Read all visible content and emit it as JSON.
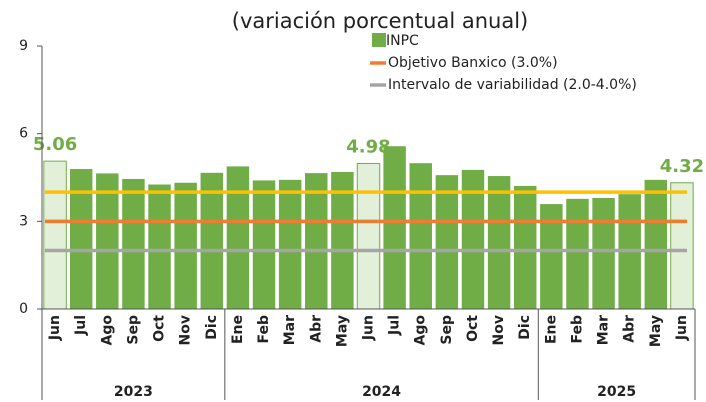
{
  "chart_data": {
    "type": "bar",
    "title": "(variación porcentual anual)",
    "categories": [
      "Jun",
      "Jul",
      "Ago",
      "Sep",
      "Oct",
      "Nov",
      "Dic",
      "Ene",
      "Feb",
      "Mar",
      "Abr",
      "May",
      "Jun",
      "Jul",
      "Ago",
      "Sep",
      "Oct",
      "Nov",
      "Dic",
      "Ene",
      "Feb",
      "Mar",
      "Abr",
      "May",
      "Jun"
    ],
    "year_groups": [
      {
        "label": "2023",
        "start": 0,
        "end": 6
      },
      {
        "label": "2024",
        "start": 7,
        "end": 18
      },
      {
        "label": "2025",
        "start": 19,
        "end": 24
      }
    ],
    "series": [
      {
        "name": "INPC",
        "color": "#70ad47",
        "values": [
          5.06,
          4.79,
          4.64,
          4.45,
          4.26,
          4.32,
          4.66,
          4.88,
          4.4,
          4.42,
          4.65,
          4.69,
          4.98,
          5.57,
          4.99,
          4.58,
          4.76,
          4.55,
          4.21,
          3.59,
          3.77,
          3.8,
          3.93,
          4.42,
          4.32
        ]
      }
    ],
    "highlight": {
      "indices": [
        0,
        12,
        24
      ],
      "color": "#e2efd9"
    },
    "reference_lines": [
      {
        "name": "Objetivo Banxico (3.0%)",
        "colors": [
          "#ed7d31"
        ],
        "values": [
          3.0
        ]
      },
      {
        "name": "Intervalo de variabilidad (2.0-4.0%)",
        "colors": [
          "#a5a5a5",
          "#ffc000"
        ],
        "values": [
          2.0,
          4.0
        ]
      }
    ],
    "ylim": [
      0,
      9
    ],
    "yticks": [
      0,
      3,
      6,
      9
    ]
  }
}
